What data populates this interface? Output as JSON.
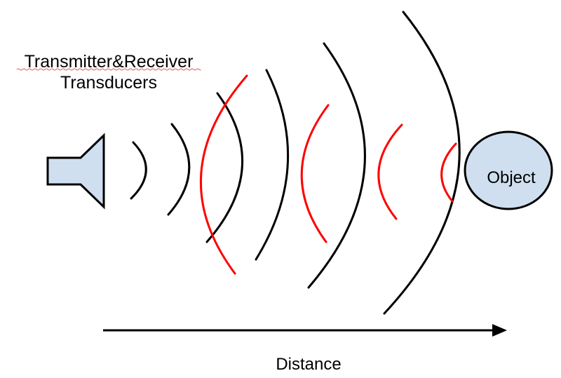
{
  "title": {
    "line1": "Transmitter&Receiver",
    "line2": "Transducers"
  },
  "object_label": "Object",
  "axis_label": "Distance",
  "colors": {
    "emitted_wave": "#000000",
    "echo_wave": "#ff0000",
    "fill": "#cfdff0"
  }
}
